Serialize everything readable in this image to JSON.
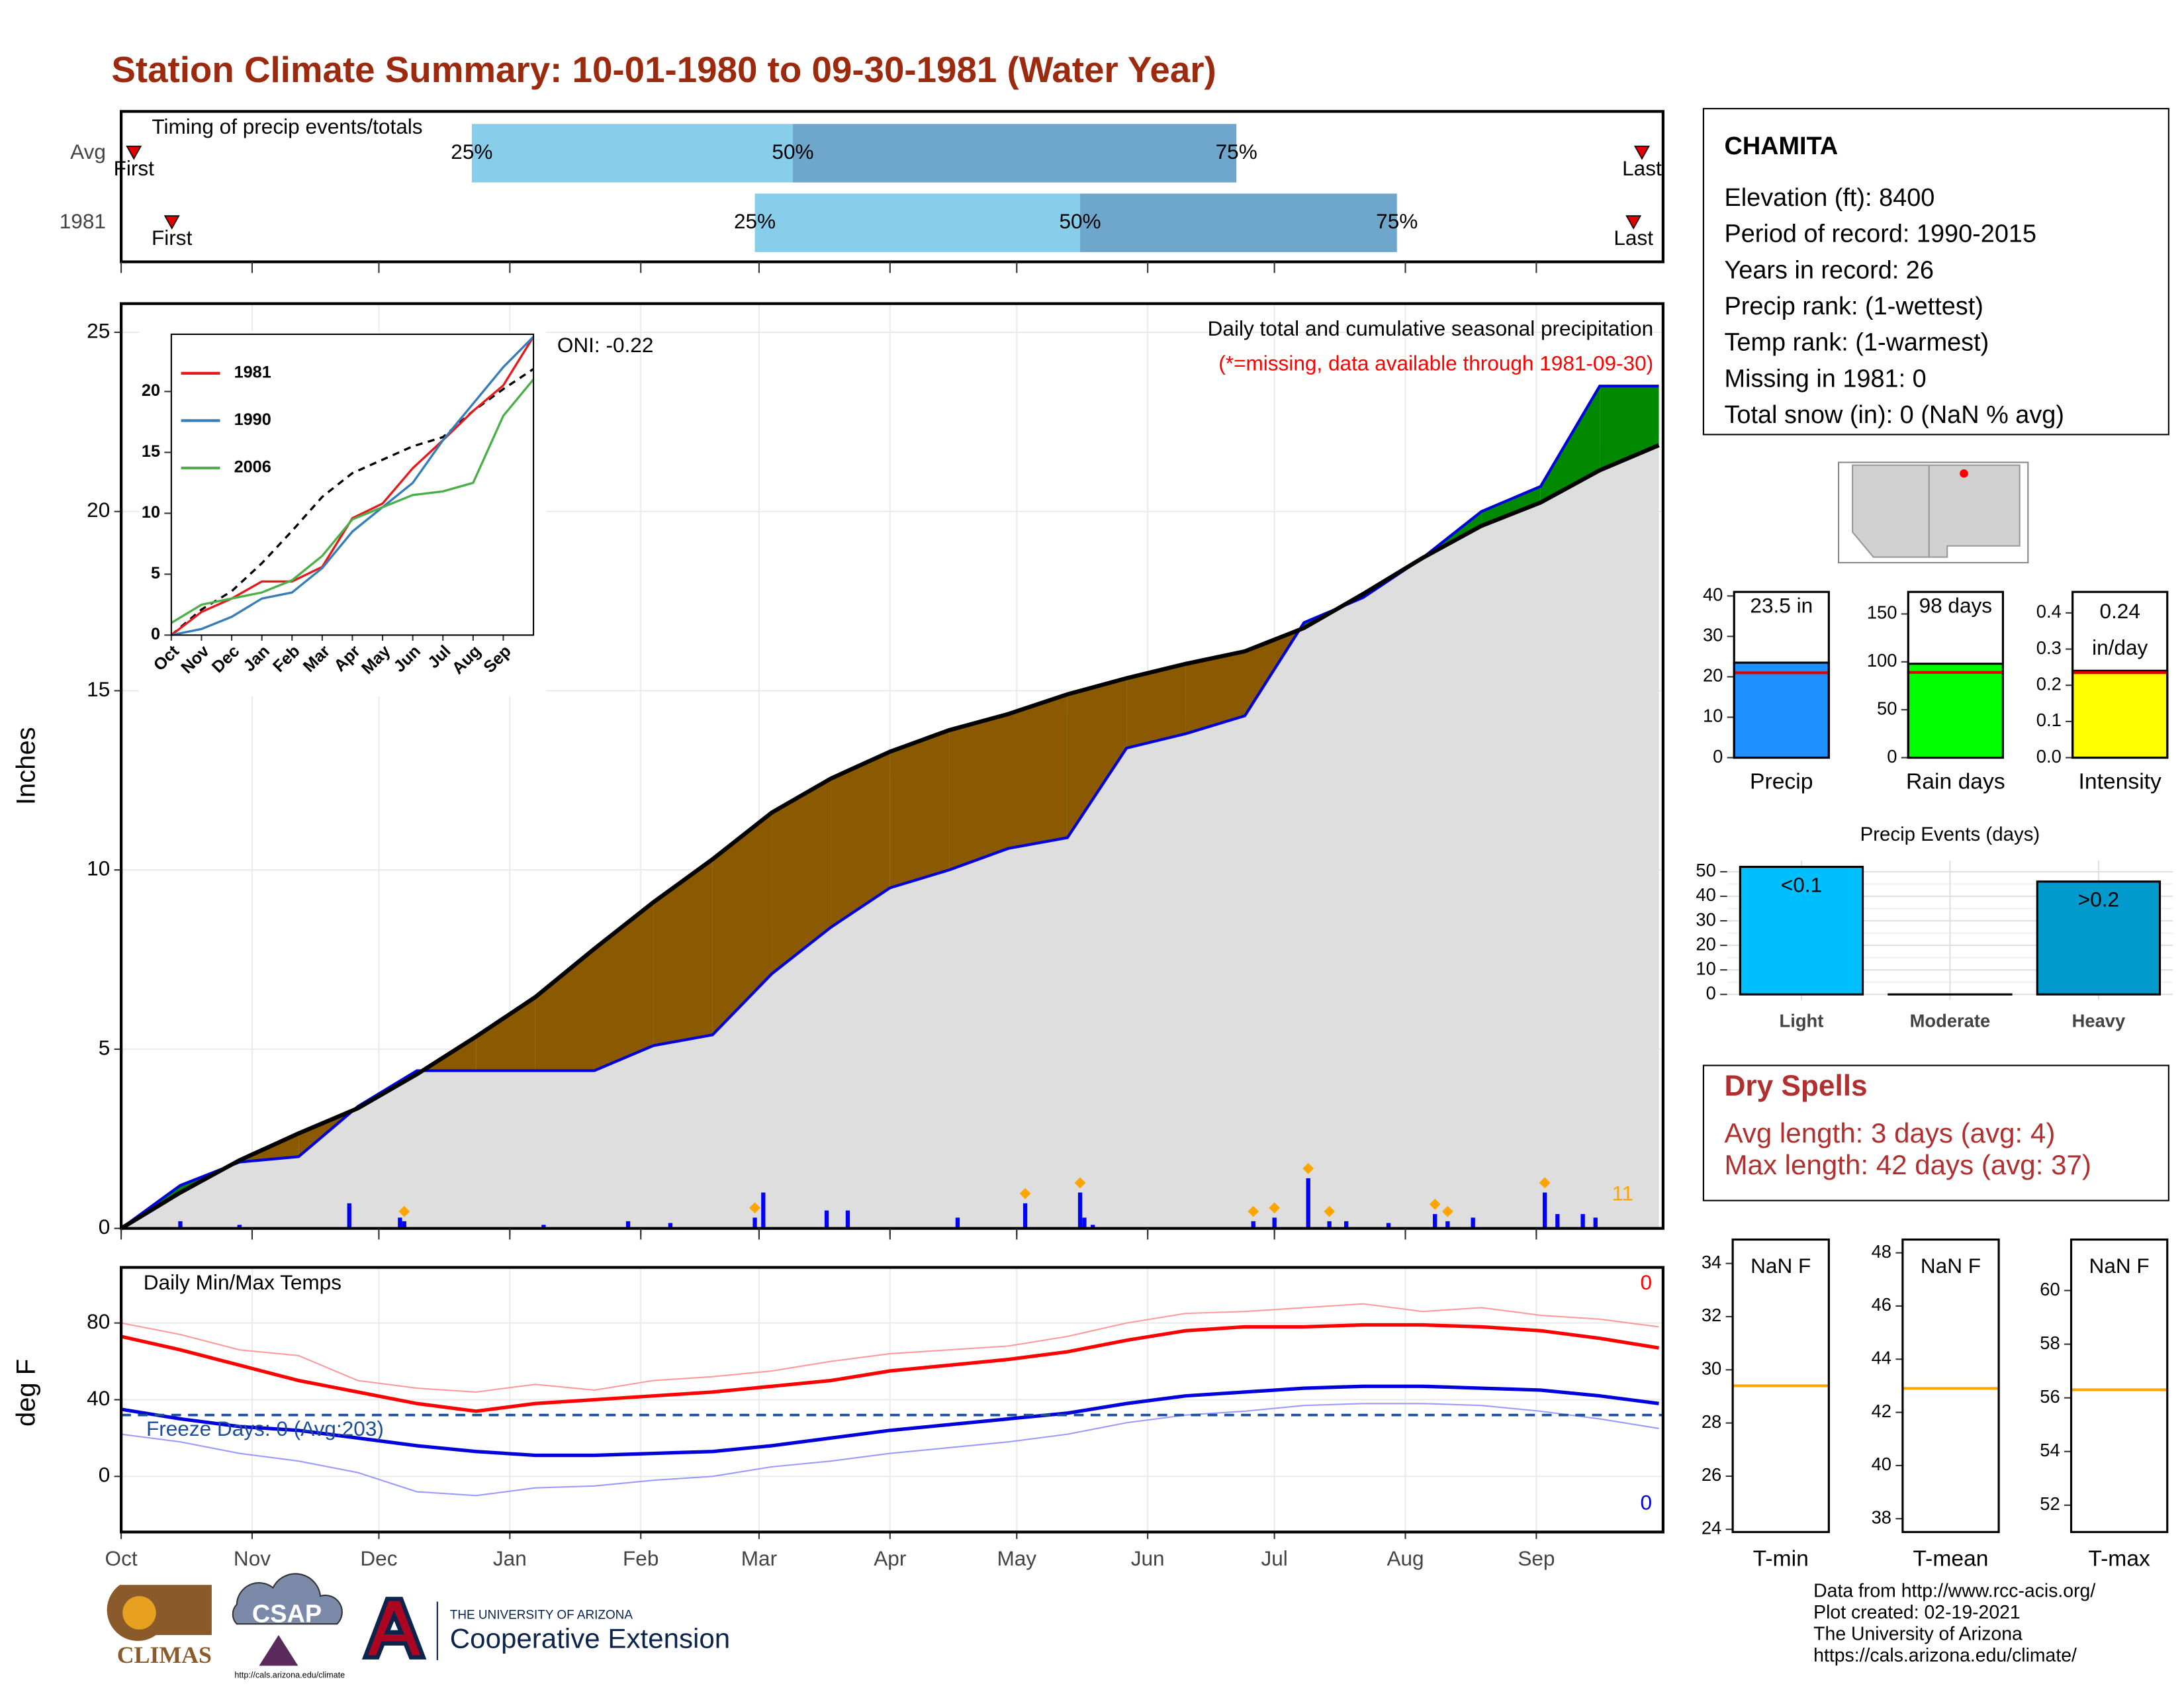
{
  "title": "Station Climate Summary: 10-01-1980 to 09-30-1981 (Water Year)",
  "chart_data": [
    {
      "type": "timing",
      "title": "Timing of precip events/totals",
      "xlim": [
        0,
        365
      ],
      "rows": [
        {
          "name": "Avg",
          "first": 3,
          "p25": 83,
          "p50": 159,
          "p75": 264,
          "last": 360
        },
        {
          "name": "1981",
          "first": 12,
          "p25": 150,
          "p50": 227,
          "p75": 302,
          "last": 358
        }
      ],
      "labels": {
        "first": "First",
        "last": "Last",
        "p25": "25%",
        "p50": "50%",
        "p75": "75%"
      },
      "colors": {
        "early": "#87ceeb",
        "late": "#6ea6cc",
        "marker": "#e00000"
      }
    },
    {
      "type": "cumulative",
      "ylabel": "Inches",
      "xlim": [
        0,
        365
      ],
      "ylim": [
        0,
        25.8
      ],
      "yticks": [
        0,
        5,
        10,
        15,
        20,
        25
      ],
      "xticks": [
        0,
        31,
        61,
        92,
        123,
        151,
        182,
        212,
        243,
        273,
        304,
        335
      ],
      "grid": true,
      "annotations": {
        "oni": "ONI: -0.22",
        "description": "Daily total and cumulative seasonal precipitation",
        "missing": "(*=missing, data available through 1981-09-30)"
      },
      "x": [
        0,
        14,
        28,
        42,
        56,
        70,
        84,
        98,
        112,
        126,
        140,
        154,
        168,
        182,
        196,
        210,
        224,
        238,
        252,
        266,
        280,
        294,
        308,
        322,
        336,
        350,
        364
      ],
      "average": [
        0,
        1.0,
        1.9,
        2.65,
        3.35,
        4.3,
        5.35,
        6.45,
        7.8,
        9.1,
        10.3,
        11.6,
        12.55,
        13.3,
        13.9,
        14.35,
        14.9,
        15.35,
        15.75,
        16.1,
        16.75,
        17.7,
        18.7,
        19.6,
        20.25,
        21.15,
        21.85
      ],
      "observed": [
        0,
        1.2,
        1.85,
        2.0,
        3.4,
        4.4,
        4.4,
        4.4,
        4.4,
        5.1,
        5.4,
        7.1,
        8.4,
        9.5,
        10.0,
        10.6,
        10.9,
        13.4,
        13.8,
        14.3,
        16.9,
        17.6,
        18.7,
        20.0,
        20.7,
        23.5,
        23.5
      ],
      "colors": {
        "average": "#000000",
        "observed": "#0000dd",
        "below": "#8b5a00",
        "above": "#008800",
        "base": "#dedede",
        "daily": "#0000ff",
        "extreme": "#ffa500"
      },
      "daily": {
        "x": [
          14,
          28,
          54,
          66,
          67,
          100,
          120,
          130,
          150,
          152,
          167,
          172,
          198,
          214,
          227,
          228,
          230,
          268,
          273,
          281,
          286,
          290,
          300,
          311,
          314,
          320,
          337,
          340,
          346,
          349
        ],
        "values": [
          0.2,
          0.1,
          0.7,
          0.3,
          0.2,
          0.1,
          0.2,
          0.15,
          0.3,
          1.0,
          0.5,
          0.5,
          0.3,
          0.7,
          1.0,
          0.3,
          0.1,
          0.2,
          0.3,
          1.4,
          0.2,
          0.2,
          0.15,
          0.4,
          0.2,
          0.3,
          1.0,
          0.4,
          0.4,
          0.3
        ]
      },
      "extreme_days": [
        67,
        150,
        214,
        227,
        268,
        273,
        281,
        286,
        311,
        314,
        337
      ],
      "extreme_count": 11
    },
    {
      "type": "line",
      "xlim": [
        0,
        12
      ],
      "ylim": [
        0,
        24.7
      ],
      "yticks": [
        0,
        5,
        10,
        15,
        20
      ],
      "xticks": [
        {
          "value": 0,
          "label": "Oct"
        },
        {
          "value": 1,
          "label": "Nov"
        },
        {
          "value": 2,
          "label": "Dec"
        },
        {
          "value": 3,
          "label": "Jan"
        },
        {
          "value": 4,
          "label": "Feb"
        },
        {
          "value": 5,
          "label": "Mar"
        },
        {
          "value": 6,
          "label": "Apr"
        },
        {
          "value": 7,
          "label": "May"
        },
        {
          "value": 8,
          "label": "Jun"
        },
        {
          "value": 9,
          "label": "Jul"
        },
        {
          "value": 10,
          "label": "Aug"
        },
        {
          "value": 11,
          "label": "Sep"
        }
      ],
      "x": [
        0,
        1,
        2,
        3,
        4,
        5,
        6,
        7,
        8,
        9,
        10,
        11,
        12
      ],
      "average": [
        0,
        2.1,
        3.6,
        5.9,
        8.55,
        11.35,
        13.3,
        14.4,
        15.5,
        16.25,
        18.4,
        20.2,
        21.85
      ],
      "series": [
        {
          "name": "1981",
          "color": "#e41a1c",
          "values": [
            0,
            1.9,
            3.0,
            4.4,
            4.4,
            5.6,
            9.6,
            10.8,
            13.7,
            16.0,
            18.4,
            20.5,
            24.5
          ]
        },
        {
          "name": "1990",
          "color": "#377eb8",
          "values": [
            0,
            0.5,
            1.5,
            3.0,
            3.5,
            5.5,
            8.5,
            10.5,
            12.5,
            16,
            19,
            22,
            24.5
          ]
        },
        {
          "name": "2006",
          "color": "#4daf4a",
          "values": [
            1.0,
            2.5,
            3.0,
            3.5,
            4.5,
            6.5,
            9.5,
            10.5,
            11.5,
            11.8,
            12.5,
            18,
            21
          ]
        }
      ]
    },
    {
      "type": "temperature",
      "ylabel": "deg F",
      "xlim": [
        0,
        365
      ],
      "ylim": [
        -29,
        109
      ],
      "yticks": [
        0,
        40,
        80
      ],
      "xticks": [
        {
          "value": 0,
          "label": "Oct"
        },
        {
          "value": 31,
          "label": "Nov"
        },
        {
          "value": 61,
          "label": "Dec"
        },
        {
          "value": 92,
          "label": "Jan"
        },
        {
          "value": 123,
          "label": "Feb"
        },
        {
          "value": 151,
          "label": "Mar"
        },
        {
          "value": 182,
          "label": "Apr"
        },
        {
          "value": 212,
          "label": "May"
        },
        {
          "value": 243,
          "label": "Jun"
        },
        {
          "value": 273,
          "label": "Jul"
        },
        {
          "value": 304,
          "label": "Aug"
        },
        {
          "value": 335,
          "label": "Sep"
        }
      ],
      "grid": true,
      "freeze_line": 32,
      "freeze_color": "#1f4e99",
      "annotations": {
        "title": "Daily Min/Max Temps",
        "freeze": "Freeze Days: 0 (Avg:203)",
        "max_count": 0,
        "min_count": 0
      },
      "x": [
        0,
        14,
        28,
        42,
        56,
        70,
        84,
        98,
        112,
        126,
        140,
        154,
        168,
        182,
        196,
        210,
        224,
        238,
        252,
        266,
        280,
        294,
        308,
        322,
        336,
        350,
        364
      ],
      "series": [
        {
          "color": "#ff9a9a",
          "width": 1,
          "values": [
            80,
            74,
            66,
            63,
            50,
            46,
            44,
            48,
            45,
            50,
            52,
            55,
            60,
            64,
            66,
            68,
            73,
            80,
            85,
            86,
            88,
            90,
            86,
            88,
            84,
            82,
            78
          ]
        },
        {
          "color": "#9a9aff",
          "width": 1,
          "values": [
            22,
            18,
            12,
            8,
            2,
            -8,
            -10,
            -6,
            -5,
            -2,
            0,
            5,
            8,
            12,
            15,
            18,
            22,
            28,
            32,
            34,
            37,
            38,
            38,
            37,
            34,
            30,
            25
          ]
        },
        {
          "color": "#ff0000",
          "width": 2.5,
          "values": [
            73,
            66,
            58,
            50,
            44,
            38,
            34,
            38,
            40,
            42,
            44,
            47,
            50,
            55,
            58,
            61,
            65,
            71,
            76,
            78,
            78,
            79,
            79,
            78,
            76,
            72,
            67
          ]
        },
        {
          "color": "#0000dd",
          "width": 2.5,
          "values": [
            35,
            30,
            26,
            24,
            20,
            16,
            13,
            11,
            11,
            12,
            13,
            16,
            20,
            24,
            27,
            30,
            33,
            38,
            42,
            44,
            46,
            47,
            47,
            46,
            45,
            42,
            38
          ]
        }
      ]
    },
    {
      "type": "summary-bar",
      "category": "Precip",
      "value": 23.5,
      "value_label": "23.5 in",
      "average": 21,
      "color": "#1e90ff",
      "ylim": [
        0,
        41
      ],
      "yticks": [
        0,
        10,
        20,
        30,
        40
      ]
    },
    {
      "type": "summary-bar",
      "category": "Rain days",
      "value": 98,
      "value_label": "98 days",
      "average": 89,
      "color": "#00ff00",
      "ylim": [
        0,
        173
      ],
      "yticks": [
        0,
        50,
        100,
        150
      ]
    },
    {
      "type": "summary-bar",
      "category": "Intensity",
      "value": 0.24,
      "value_label": [
        "0.24",
        "in/day"
      ],
      "average": 0.235,
      "color": "#ffff00",
      "ylim": [
        0,
        0.458
      ],
      "yticks": [
        {
          "value": 0,
          "label": "0.0"
        },
        0.1,
        0.2,
        0.3,
        0.4
      ]
    },
    {
      "type": "bar",
      "title": "Precip Events (days)",
      "categories": [
        "Light",
        "Moderate",
        "Heavy"
      ],
      "values": [
        52,
        0,
        46
      ],
      "threshold_labels": [
        "<0.1",
        null,
        ">0.2"
      ],
      "colors": [
        "#00bfff",
        "#00bfff",
        "#009acd"
      ],
      "ylim": [
        0,
        54.5
      ],
      "yticks": [
        0,
        10,
        20,
        30,
        40,
        50
      ]
    },
    {
      "type": "temp-box",
      "category": "T-min",
      "value": null,
      "value_label": "NaN F",
      "average": 29.4,
      "ylim": [
        23.9,
        34.9
      ],
      "yticks": [
        24,
        26,
        28,
        30,
        32,
        34
      ]
    },
    {
      "type": "temp-box",
      "category": "T-mean",
      "value": null,
      "value_label": "NaN F",
      "average": 42.9,
      "ylim": [
        37.5,
        48.5
      ],
      "yticks": [
        38,
        40,
        42,
        44,
        46,
        48
      ]
    },
    {
      "type": "temp-box",
      "category": "T-max",
      "value": null,
      "value_label": "NaN F",
      "average": 56.3,
      "ylim": [
        51,
        61.9
      ],
      "yticks": [
        52,
        54,
        56,
        58,
        60
      ]
    }
  ],
  "station": {
    "name": "CHAMITA",
    "lines": [
      "Elevation (ft): 8400",
      "Period of record: 1990-2015",
      "Years in record: 26",
      "Precip rank:  (1-wettest)",
      "Temp rank:  (1-warmest)",
      "Missing in 1981: 0",
      "Total snow (in): 0 (NaN % avg)"
    ]
  },
  "dry_spells": {
    "title": "Dry Spells",
    "lines": [
      "Avg length: 3 days (avg: 4)",
      "Max length: 42 days (avg: 37)"
    ]
  },
  "footer": {
    "lines": [
      "Data from http://www.rcc-acis.org/",
      "Plot created: 02-19-2021",
      "The University of Arizona",
      "https://cals.arizona.edu/climate/"
    ]
  },
  "logos": {
    "climas": "CLIMAS",
    "csap": "CSAP",
    "csap_url": "http://cals.arizona.edu/climate",
    "ua": "THE UNIVERSITY OF ARIZONA",
    "extension": "Cooperative Extension"
  }
}
